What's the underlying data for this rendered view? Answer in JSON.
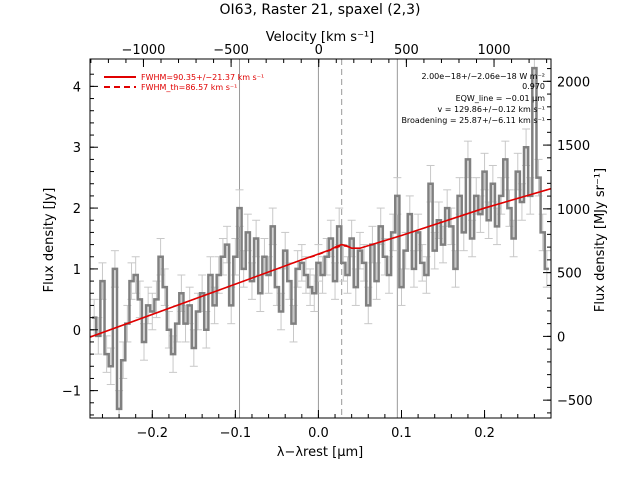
{
  "chart_data": {
    "type": "line",
    "title": "OI63, Raster 21, spaxel (2,3)",
    "xlabel": "λ−λrest [μm]",
    "ylabel_left": "Flux density [Jy]",
    "ylabel_right": "Flux density [MJy sr⁻¹]",
    "xlabel_top": "Velocity [km s⁻¹]",
    "xlim": [
      -0.275,
      0.28
    ],
    "ylim": [
      -1.45,
      4.45
    ],
    "ylim_right": [
      -640,
      2175
    ],
    "velocity_range": [
      -1305,
      1325
    ],
    "x_ticks": [
      -0.2,
      -0.1,
      0.0,
      0.1,
      0.2
    ],
    "x_tick_labels": [
      "−0.2",
      "−0.1",
      "0.0",
      "0.1",
      "0.2"
    ],
    "y_ticks": [
      -1,
      0,
      1,
      2,
      3,
      4
    ],
    "y_tick_labels": [
      "−1",
      "0",
      "1",
      "2",
      "3",
      "4"
    ],
    "top_ticks": [
      -1000,
      -500,
      0,
      500,
      1000
    ],
    "top_tick_labels": [
      "−1000",
      "−500",
      "0",
      "500",
      "1000"
    ],
    "right_ticks": [
      -500,
      0,
      500,
      1000,
      1500,
      2000
    ],
    "right_tick_labels": [
      "−500",
      "0",
      "500",
      "1000",
      "1500",
      "2000"
    ],
    "vertical_lines": [
      {
        "x": -0.095,
        "style": "solid"
      },
      {
        "x": 0.0,
        "style": "solid"
      },
      {
        "x": 0.028,
        "style": "dashed"
      },
      {
        "x": 0.095,
        "style": "solid"
      }
    ],
    "legend": [
      {
        "label": "FWHM=90.35+/−21.37 km s⁻¹",
        "style": "solid",
        "color": "#e00000"
      },
      {
        "label": "FWHM_th=86.57 km s⁻¹",
        "style": "dashed",
        "color": "#e00000"
      }
    ],
    "annotations": [
      "2.00e−18+/−2.06e−18 W m⁻²",
      "0.970",
      "EQW_line = −0.01 μm",
      "v = 129.86+/−0.12 km s⁻¹",
      "Broadening = 25.87+/−6.11 km s⁻¹"
    ],
    "series": [
      {
        "style": "gray-step-with-errorbars",
        "color": "#808080",
        "x": [
          -0.27,
          -0.265,
          -0.26,
          -0.255,
          -0.25,
          -0.245,
          -0.24,
          -0.235,
          -0.23,
          -0.225,
          -0.22,
          -0.215,
          -0.21,
          -0.205,
          -0.2,
          -0.195,
          -0.19,
          -0.185,
          -0.18,
          -0.175,
          -0.17,
          -0.165,
          -0.16,
          -0.155,
          -0.15,
          -0.145,
          -0.14,
          -0.135,
          -0.13,
          -0.125,
          -0.12,
          -0.115,
          -0.11,
          -0.105,
          -0.1,
          -0.095,
          -0.09,
          -0.085,
          -0.08,
          -0.075,
          -0.07,
          -0.065,
          -0.06,
          -0.055,
          -0.05,
          -0.045,
          -0.04,
          -0.035,
          -0.03,
          -0.025,
          -0.02,
          -0.015,
          -0.01,
          -0.005,
          0.0,
          0.005,
          0.01,
          0.015,
          0.02,
          0.025,
          0.03,
          0.035,
          0.04,
          0.045,
          0.05,
          0.055,
          0.06,
          0.065,
          0.07,
          0.075,
          0.08,
          0.085,
          0.09,
          0.095,
          0.1,
          0.105,
          0.11,
          0.115,
          0.12,
          0.125,
          0.13,
          0.135,
          0.14,
          0.145,
          0.15,
          0.155,
          0.16,
          0.165,
          0.17,
          0.175,
          0.18,
          0.185,
          0.19,
          0.195,
          0.2,
          0.205,
          0.21,
          0.215,
          0.22,
          0.225,
          0.23,
          0.235,
          0.24,
          0.245,
          0.25,
          0.255,
          0.26,
          0.265,
          0.27,
          0.275
        ],
        "y": [
          0.2,
          -0.1,
          0.8,
          -0.4,
          -0.6,
          1.0,
          -1.3,
          -0.5,
          0.1,
          0.8,
          0.9,
          0.5,
          -0.2,
          0.4,
          0.3,
          0.5,
          1.2,
          0.7,
          0.0,
          -0.4,
          0.1,
          0.6,
          0.1,
          0.4,
          -0.3,
          0.3,
          0.6,
          0.0,
          0.9,
          0.4,
          0.9,
          1.2,
          1.4,
          0.4,
          1.2,
          2.0,
          1.0,
          1.6,
          0.8,
          1.5,
          0.6,
          1.2,
          0.9,
          1.7,
          0.7,
          0.3,
          1.3,
          0.8,
          0.1,
          1.0,
          1.1,
          0.9,
          0.7,
          0.6,
          1.1,
          0.9,
          1.2,
          1.5,
          0.8,
          1.7,
          1.1,
          0.9,
          1.5,
          0.7,
          1.3,
          1.1,
          0.4,
          1.4,
          0.8,
          1.7,
          1.2,
          0.9,
          1.6,
          2.2,
          0.7,
          1.3,
          1.9,
          1.0,
          1.6,
          1.1,
          0.9,
          2.4,
          1.3,
          1.8,
          1.4,
          2.0,
          1.7,
          1.0,
          2.2,
          1.6,
          2.8,
          1.5,
          2.2,
          1.9,
          2.6,
          1.8,
          2.4,
          1.7,
          2.2,
          2.8,
          2.0,
          1.5,
          2.6,
          2.1,
          3.0,
          2.2,
          4.3,
          2.5,
          1.6,
          1.0
        ],
        "yerr": 0.3
      },
      {
        "name": "FWHM=90.35+/−21.37 km s⁻¹",
        "style": "solid",
        "color": "#e00000",
        "x": [
          -0.275,
          -0.1,
          -0.02,
          -0.005,
          0.005,
          0.015,
          0.022,
          0.028,
          0.034,
          0.04,
          0.05,
          0.1,
          0.2,
          0.28
        ],
        "y": [
          -0.12,
          0.75,
          1.15,
          1.22,
          1.27,
          1.32,
          1.37,
          1.4,
          1.38,
          1.34,
          1.34,
          1.55,
          2.0,
          2.32
        ]
      },
      {
        "name": "FWHM_th=86.57 km s⁻¹",
        "style": "dashed",
        "color": "#e00000",
        "x": [
          -0.275,
          -0.1,
          -0.02,
          -0.005,
          0.005,
          0.015,
          0.022,
          0.028,
          0.034,
          0.04,
          0.05,
          0.1,
          0.2,
          0.28
        ],
        "y": [
          -0.12,
          0.75,
          1.15,
          1.21,
          1.26,
          1.31,
          1.35,
          1.38,
          1.37,
          1.34,
          1.34,
          1.55,
          2.0,
          2.32
        ]
      }
    ]
  }
}
